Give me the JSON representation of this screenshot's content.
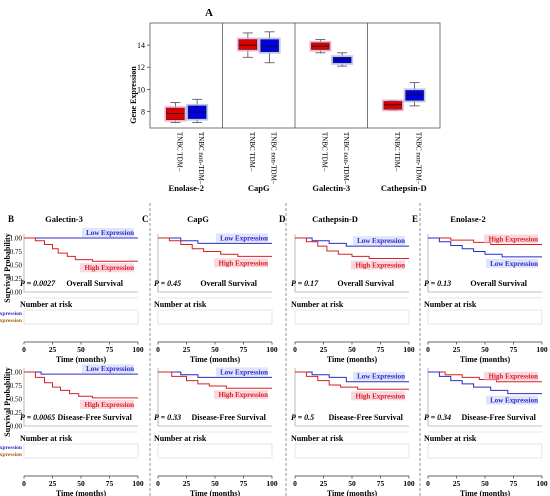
{
  "panel_a": {
    "label": "A",
    "ylabel": "Gene Expression",
    "yticks": [
      "8",
      "10",
      "12",
      "14"
    ],
    "ylim": [
      6.5,
      16
    ],
    "group_labels": [
      "TNBC TDM–",
      "TNBC non-TDM–"
    ],
    "genes": [
      {
        "name": "Enolase-2",
        "boxes": [
          {
            "group": "TNBC TDM–",
            "color": "#e00000",
            "min": 7.0,
            "q1": 7.25,
            "median": 7.8,
            "q3": 8.3,
            "max": 8.8
          },
          {
            "group": "TNBC non-TDM–",
            "color": "#0000e0",
            "min": 7.0,
            "q1": 7.35,
            "median": 7.95,
            "q3": 8.5,
            "max": 9.1
          }
        ]
      },
      {
        "name": "CapG",
        "boxes": [
          {
            "group": "TNBC TDM–",
            "color": "#e00000",
            "min": 12.9,
            "q1": 13.6,
            "median": 14.0,
            "q3": 14.5,
            "max": 15.1
          },
          {
            "group": "TNBC non-TDM–",
            "color": "#0000e0",
            "min": 12.4,
            "q1": 13.4,
            "median": 13.9,
            "q3": 14.5,
            "max": 15.2
          }
        ]
      },
      {
        "name": "Galectin-3",
        "boxes": [
          {
            "group": "TNBC TDM–",
            "color": "#e00000",
            "min": 13.3,
            "q1": 13.6,
            "median": 13.9,
            "q3": 14.2,
            "max": 14.5
          },
          {
            "group": "TNBC non-TDM–",
            "color": "#0000e0",
            "min": 12.1,
            "q1": 12.4,
            "median": 12.7,
            "q3": 12.9,
            "max": 13.3
          }
        ]
      },
      {
        "name": "Cathepsin-D",
        "boxes": [
          {
            "group": "TNBC TDM–",
            "color": "#e00000",
            "min": 8.1,
            "q1": 8.2,
            "median": 8.6,
            "q3": 8.9,
            "max": 9.0
          },
          {
            "group": "TNBC non-TDM–",
            "color": "#0000e0",
            "min": 8.5,
            "q1": 9.0,
            "median": 9.5,
            "q3": 9.9,
            "max": 10.6
          }
        ]
      }
    ]
  },
  "km": {
    "ylabel": "Survival Probability",
    "yticks": [
      "0.00",
      "0.25",
      "0.50",
      "0.75",
      "1.00"
    ],
    "xticks": [
      "0",
      "25",
      "50",
      "75",
      "100"
    ],
    "xlabel": "Time (months)",
    "risk_title": "Number at risk",
    "risk_rows": [
      "Low Expression",
      "High Expression"
    ],
    "os_title": "Overall Survival",
    "dfs_title": "Disease-Free Survival",
    "panels": [
      {
        "letter": "B",
        "gene": "Galectin-3",
        "os": {
          "p": "P = 0.0027",
          "low_label_pos": "top",
          "high_label_pos": "below"
        },
        "dfs": {
          "p": "P = 0.0065"
        }
      },
      {
        "letter": "C",
        "gene": "CapG",
        "os": {
          "p": "P = 0.45"
        },
        "dfs": {
          "p": "P = 0.33"
        }
      },
      {
        "letter": "D",
        "gene": "Cathepsin-D",
        "os": {
          "p": "P = 0.17"
        },
        "dfs": {
          "p": "P = 0.5"
        }
      },
      {
        "letter": "E",
        "gene": "Enolase-2",
        "os": {
          "p": "P = 0.13"
        },
        "dfs": {
          "p": "P = 0.34"
        }
      }
    ],
    "low_label": "Low Expression",
    "high_label": "High Expression",
    "low_color": "#2b2bc8",
    "high_color": "#d62020"
  },
  "chart_data": [
    {
      "type": "box",
      "ylabel": "Gene Expression",
      "ylim": [
        6.5,
        16
      ],
      "categories": [
        "Enolase-2",
        "CapG",
        "Galectin-3",
        "Cathepsin-D"
      ],
      "series": [
        {
          "name": "TNBC TDM–",
          "medians": [
            7.8,
            14.0,
            13.9,
            8.6
          ]
        },
        {
          "name": "TNBC non-TDM–",
          "medians": [
            7.95,
            13.9,
            12.7,
            9.5
          ]
        }
      ]
    },
    {
      "type": "line",
      "panel": "B",
      "title": "Galectin-3",
      "xlabel": "Time (months)",
      "ylabel": "Survival Probability",
      "xlim": [
        0,
        100
      ],
      "ylim": [
        0,
        1
      ],
      "plots": [
        {
          "name": "Overall Survival",
          "p_value": "P = 0.0027",
          "series": [
            {
              "name": "Low Expression",
              "x": [
                0,
                100
              ],
              "y": [
                1.0,
                1.0
              ]
            },
            {
              "name": "High Expression",
              "x": [
                0,
                10,
                18,
                25,
                30,
                38,
                45,
                60,
                100
              ],
              "y": [
                1.0,
                0.95,
                0.88,
                0.8,
                0.72,
                0.66,
                0.6,
                0.57,
                0.57
              ]
            }
          ]
        },
        {
          "name": "Disease-Free Survival",
          "p_value": "P = 0.0065",
          "series": [
            {
              "name": "Low Expression",
              "x": [
                0,
                15,
                100
              ],
              "y": [
                1.0,
                0.96,
                0.96
              ]
            },
            {
              "name": "High Expression",
              "x": [
                0,
                10,
                18,
                25,
                32,
                40,
                48,
                60,
                100
              ],
              "y": [
                1.0,
                0.9,
                0.8,
                0.72,
                0.66,
                0.6,
                0.55,
                0.52,
                0.52
              ]
            }
          ]
        }
      ]
    },
    {
      "type": "line",
      "panel": "C",
      "title": "CapG",
      "xlabel": "Time (months)",
      "ylabel": "Survival Probability",
      "xlim": [
        0,
        100
      ],
      "ylim": [
        0,
        1
      ],
      "plots": [
        {
          "name": "Overall Survival",
          "p_value": "P = 0.45",
          "series": [
            {
              "name": "Low Expression",
              "x": [
                0,
                20,
                35,
                100
              ],
              "y": [
                1.0,
                0.95,
                0.9,
                0.9
              ]
            },
            {
              "name": "High Expression",
              "x": [
                0,
                10,
                20,
                30,
                40,
                55,
                70,
                100
              ],
              "y": [
                1.0,
                0.95,
                0.88,
                0.8,
                0.75,
                0.7,
                0.66,
                0.66
              ]
            }
          ]
        },
        {
          "name": "Disease-Free Survival",
          "p_value": "P = 0.33",
          "series": [
            {
              "name": "Low Expression",
              "x": [
                0,
                20,
                35,
                100
              ],
              "y": [
                1.0,
                0.95,
                0.9,
                0.9
              ]
            },
            {
              "name": "High Expression",
              "x": [
                0,
                12,
                25,
                35,
                45,
                60,
                100
              ],
              "y": [
                1.0,
                0.92,
                0.84,
                0.78,
                0.74,
                0.7,
                0.7
              ]
            }
          ]
        }
      ]
    },
    {
      "type": "line",
      "panel": "D",
      "title": "Cathepsin-D",
      "xlabel": "Time (months)",
      "ylabel": "Survival Probability",
      "xlim": [
        0,
        100
      ],
      "ylim": [
        0,
        1
      ],
      "plots": [
        {
          "name": "Overall Survival",
          "p_value": "P = 0.17",
          "series": [
            {
              "name": "Low Expression",
              "x": [
                0,
                15,
                30,
                45,
                100
              ],
              "y": [
                1.0,
                0.95,
                0.9,
                0.85,
                0.85
              ]
            },
            {
              "name": "High Expression",
              "x": [
                0,
                10,
                20,
                28,
                38,
                50,
                65,
                100
              ],
              "y": [
                1.0,
                0.93,
                0.85,
                0.76,
                0.7,
                0.66,
                0.62,
                0.62
              ]
            }
          ]
        },
        {
          "name": "Disease-Free Survival",
          "p_value": "P = 0.5",
          "series": [
            {
              "name": "Low Expression",
              "x": [
                0,
                15,
                30,
                45,
                100
              ],
              "y": [
                1.0,
                0.95,
                0.9,
                0.82,
                0.82
              ]
            },
            {
              "name": "High Expression",
              "x": [
                0,
                10,
                20,
                30,
                40,
                55,
                100
              ],
              "y": [
                1.0,
                0.92,
                0.84,
                0.76,
                0.72,
                0.68,
                0.68
              ]
            }
          ]
        }
      ]
    },
    {
      "type": "line",
      "panel": "E",
      "title": "Enolase-2",
      "xlabel": "Time (months)",
      "ylabel": "Survival Probability",
      "xlim": [
        0,
        100
      ],
      "ylim": [
        0,
        1
      ],
      "plots": [
        {
          "name": "Overall Survival",
          "p_value": "P = 0.13",
          "series": [
            {
              "name": "High Expression",
              "x": [
                0,
                20,
                40,
                55,
                100
              ],
              "y": [
                1.0,
                0.96,
                0.92,
                0.88,
                0.88
              ]
            },
            {
              "name": "Low Expression",
              "x": [
                0,
                10,
                20,
                30,
                40,
                50,
                65,
                100
              ],
              "y": [
                1.0,
                0.93,
                0.86,
                0.8,
                0.75,
                0.7,
                0.65,
                0.65
              ]
            }
          ]
        },
        {
          "name": "Disease-Free Survival",
          "p_value": "P = 0.34",
          "series": [
            {
              "name": "High Expression",
              "x": [
                0,
                15,
                30,
                45,
                60,
                100
              ],
              "y": [
                1.0,
                0.95,
                0.9,
                0.86,
                0.82,
                0.82
              ]
            },
            {
              "name": "Low Expression",
              "x": [
                0,
                10,
                20,
                30,
                40,
                55,
                70,
                100
              ],
              "y": [
                1.0,
                0.92,
                0.84,
                0.78,
                0.72,
                0.66,
                0.6,
                0.6
              ]
            }
          ]
        }
      ]
    }
  ]
}
